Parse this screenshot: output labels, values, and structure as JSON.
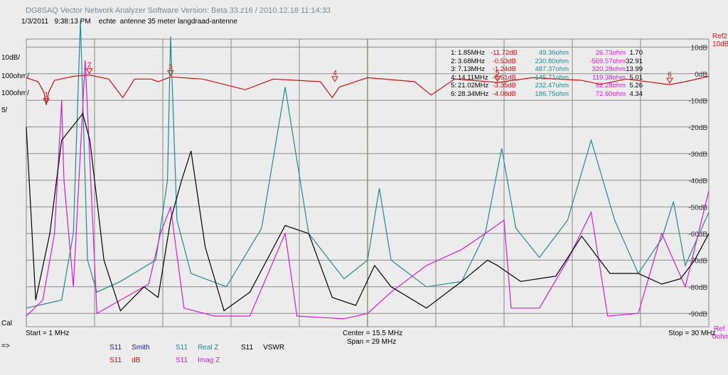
{
  "app_title": "DG8SAQ Vector Network Analyzer Software   Version:  Beta 33.z16  /  2010.12.18  11:14:33",
  "subtitle": "1/3/2011   9:38:13 PM    echte  antenne 35 meter langdraad-antenne",
  "colors": {
    "smith": "#1a1aa8",
    "db": "#cc1111",
    "real": "#1f8c8c",
    "imag": "#d81ad8",
    "vswr": "#000000",
    "grid": "#8a8a8a",
    "gridc": "#5a6e2a",
    "plot_bg": "#ececec"
  },
  "left_labels": {
    "db_scale": "10dB/",
    "real_scale": "100ohm/",
    "imag_scale": "100ohm/",
    "vswr_scale": "5/",
    "cal": "Cal",
    "arrow": "=>"
  },
  "right_labels": {
    "ref": "Ref2",
    "ref_db": "10dB",
    "ref_ohm": "Ref",
    "ref_ohm_unit": "0ohm"
  },
  "axis": {
    "start": "Start = 1 MHz",
    "center": "Center = 15.5 MHz",
    "span": "Span = 29 MHz",
    "stop": "Stop = 30 MHz"
  },
  "markers": [
    {
      "n": "1:",
      "freq": "1.85MHz",
      "db": "-11.72dB",
      "real": "49.36ohm",
      "imag": "26.73ohm",
      "vswr": "1.70"
    },
    {
      "n": "2:",
      "freq": "3.68MHz",
      "db": "-0.53dB",
      "real": "230.80ohm",
      "imag": "-569.57ohm",
      "vswr": "32.91"
    },
    {
      "n": "3:",
      "freq": "7.13MHz",
      "db": "-1.24dB",
      "real": "487.37ohm",
      "imag": "320.28ohm",
      "vswr": "13.99"
    },
    {
      "n": "4:",
      "freq": "14.11MHz",
      "db": "-3.51dB",
      "real": "145.71ohm",
      "imag": "119.38ohm",
      "vswr": "5.01"
    },
    {
      "n": "5:",
      "freq": "21.02MHz",
      "db": "-3.35dB",
      "real": "232.47ohm",
      "imag": "82.28ohm",
      "vswr": "5.26"
    },
    {
      "n": "6:",
      "freq": "28.34MHz",
      "db": "-4.08dB",
      "real": "186.75ohm",
      "imag": "72.60ohm",
      "vswr": "4.34"
    }
  ],
  "legend": [
    {
      "param": "S11",
      "name": "Smith",
      "color": "#1a1aa8"
    },
    {
      "param": "S11",
      "name": "dB",
      "color": "#cc1111"
    },
    {
      "param": "S11",
      "name": "Real Z",
      "color": "#1f8c8c"
    },
    {
      "param": "S11",
      "name": "Imag Z",
      "color": "#d81ad8"
    },
    {
      "param": "S11",
      "name": "VSWR",
      "color": "#000000"
    }
  ],
  "chart_data": {
    "type": "line",
    "x_range_mhz": [
      1,
      30
    ],
    "y_right_ticks": [
      "10dB",
      "0dB",
      "-10dB",
      "-20dB",
      "-30dB",
      "-40dB",
      "-50dB",
      "-60dB",
      "-70dB",
      "-80dB",
      "-90dB"
    ],
    "y_range_db": [
      -95,
      13
    ],
    "grid": true,
    "series": [
      {
        "name": "dB",
        "color": "#cc1111",
        "points": [
          [
            1.0,
            -1.5
          ],
          [
            1.5,
            -3
          ],
          [
            1.75,
            -7
          ],
          [
            1.85,
            -11.7
          ],
          [
            1.95,
            -7
          ],
          [
            2.2,
            -2.5
          ],
          [
            3.0,
            -1
          ],
          [
            3.68,
            -0.5
          ],
          [
            4.5,
            -2
          ],
          [
            5.1,
            -9
          ],
          [
            5.6,
            -2
          ],
          [
            6.3,
            -2
          ],
          [
            6.6,
            -3
          ],
          [
            7.13,
            -1.2
          ],
          [
            8.5,
            -2
          ],
          [
            10.3,
            -6
          ],
          [
            11.5,
            -2
          ],
          [
            13.5,
            -3
          ],
          [
            14.0,
            -9
          ],
          [
            14.3,
            -5
          ],
          [
            15.5,
            -1.5
          ],
          [
            17.5,
            -3
          ],
          [
            18.2,
            -8
          ],
          [
            19.2,
            -2
          ],
          [
            21.02,
            -3.3
          ],
          [
            22.5,
            -1.5
          ],
          [
            24.6,
            -2.5
          ],
          [
            25.4,
            -4
          ],
          [
            26.5,
            -2
          ],
          [
            28.34,
            -4.1
          ],
          [
            29.0,
            -3
          ],
          [
            30.0,
            -1
          ]
        ]
      },
      {
        "name": "Real Z",
        "color": "#1f8c8c",
        "points": [
          [
            1.0,
            -88
          ],
          [
            2.5,
            -85
          ],
          [
            3.0,
            -60
          ],
          [
            3.3,
            20
          ],
          [
            3.6,
            -70
          ],
          [
            4.0,
            -82
          ],
          [
            5.0,
            -78
          ],
          [
            6.5,
            -70
          ],
          [
            7.0,
            -40
          ],
          [
            7.13,
            14
          ],
          [
            7.4,
            -55
          ],
          [
            8.0,
            -75
          ],
          [
            9.5,
            -80
          ],
          [
            11.0,
            -58
          ],
          [
            12.0,
            -5
          ],
          [
            13.0,
            -60
          ],
          [
            14.5,
            -77
          ],
          [
            15.5,
            -70
          ],
          [
            16.0,
            -43
          ],
          [
            16.5,
            -70
          ],
          [
            18.0,
            -80
          ],
          [
            19.5,
            -78
          ],
          [
            20.5,
            -60
          ],
          [
            21.2,
            -28
          ],
          [
            21.8,
            -58
          ],
          [
            22.8,
            -69
          ],
          [
            24.0,
            -55
          ],
          [
            25.0,
            -25
          ],
          [
            26.0,
            -55
          ],
          [
            27.0,
            -75
          ],
          [
            28.0,
            -62
          ],
          [
            28.5,
            -48
          ],
          [
            29.0,
            -72
          ],
          [
            30.0,
            -52
          ]
        ]
      },
      {
        "name": "Imag Z",
        "color": "#d81ad8",
        "points": [
          [
            1.0,
            -91
          ],
          [
            1.7,
            -85
          ],
          [
            2.2,
            -60
          ],
          [
            2.5,
            -10
          ],
          [
            2.6,
            -40
          ],
          [
            3.0,
            -80
          ],
          [
            3.5,
            5
          ],
          [
            4.0,
            -90
          ],
          [
            5.0,
            -85
          ],
          [
            6.2,
            -79
          ],
          [
            6.7,
            -60
          ],
          [
            7.13,
            -50
          ],
          [
            7.7,
            -88
          ],
          [
            9.0,
            -91
          ],
          [
            10.5,
            -91
          ],
          [
            12.0,
            -60
          ],
          [
            12.5,
            -91
          ],
          [
            14.5,
            -92
          ],
          [
            15.5,
            -90
          ],
          [
            16.5,
            -82
          ],
          [
            18.0,
            -72
          ],
          [
            19.5,
            -66
          ],
          [
            20.5,
            -60
          ],
          [
            21.3,
            -55
          ],
          [
            21.6,
            -88
          ],
          [
            22.8,
            -88
          ],
          [
            24.0,
            -70
          ],
          [
            25.0,
            -52
          ],
          [
            25.7,
            -91
          ],
          [
            27.0,
            -90
          ],
          [
            28.0,
            -60
          ],
          [
            28.5,
            -70
          ],
          [
            29.0,
            -80
          ],
          [
            30.0,
            -44
          ]
        ]
      },
      {
        "name": "VSWR",
        "color": "#000000",
        "points": [
          [
            1.0,
            -20
          ],
          [
            1.4,
            -85
          ],
          [
            2.0,
            -60
          ],
          [
            2.5,
            -25
          ],
          [
            3.4,
            -15
          ],
          [
            3.7,
            -25
          ],
          [
            4.3,
            -70
          ],
          [
            5.0,
            -89
          ],
          [
            6.0,
            -80
          ],
          [
            6.6,
            -84
          ],
          [
            7.13,
            -55
          ],
          [
            7.6,
            -40
          ],
          [
            8.0,
            -29
          ],
          [
            8.6,
            -65
          ],
          [
            9.4,
            -89
          ],
          [
            10.5,
            -82
          ],
          [
            12.0,
            -57
          ],
          [
            13.0,
            -60
          ],
          [
            14.0,
            -84
          ],
          [
            15.0,
            -87
          ],
          [
            15.8,
            -72
          ],
          [
            16.5,
            -80
          ],
          [
            18.0,
            -88
          ],
          [
            19.5,
            -78
          ],
          [
            20.6,
            -70
          ],
          [
            21.02,
            -72
          ],
          [
            22.0,
            -78
          ],
          [
            23.5,
            -76
          ],
          [
            24.6,
            -61
          ],
          [
            25.8,
            -75
          ],
          [
            27.0,
            -75
          ],
          [
            28.0,
            -79
          ],
          [
            28.8,
            -77
          ],
          [
            29.4,
            -70
          ],
          [
            30.0,
            -60
          ]
        ]
      }
    ]
  }
}
